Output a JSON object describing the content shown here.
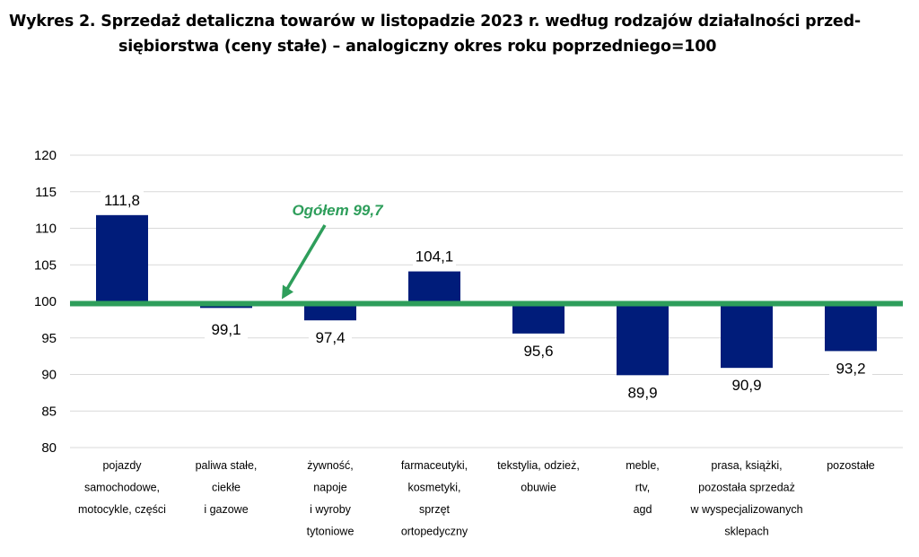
{
  "title_lines": [
    "Wykres 2. Sprzedaż detaliczna towarów w listopadzie 2023 r. według rodzajów działalności przed-",
    "siębiorstwa (ceny stałe) – analogiczny okres roku poprzedniego=100"
  ],
  "chart_data": {
    "type": "bar",
    "title": "Wykres 2. Sprzedaż detaliczna towarów w listopadzie 2023 r. według rodzajów działalności przedsiębiorstwa (ceny stałe) – analogiczny okres roku poprzedniego=100",
    "categories": [
      [
        "pojazdy",
        "samochodowe,",
        "motocykle, części"
      ],
      [
        "paliwa stałe,",
        "ciekłe",
        "i gazowe"
      ],
      [
        "żywność,",
        "napoje",
        "i wyroby",
        "tytoniowe"
      ],
      [
        "farmaceutyki,",
        "kosmetyki,",
        "sprzęt",
        "ortopedyczny"
      ],
      [
        "tekstylia, odzież,",
        "obuwie"
      ],
      [
        "meble,",
        "rtv,",
        "agd"
      ],
      [
        "prasa, książki,",
        "pozostała sprzedaż",
        "w wyspecjalizowanych",
        "sklepach"
      ],
      [
        "pozostałe"
      ]
    ],
    "values": [
      111.8,
      99.1,
      97.4,
      104.1,
      95.6,
      89.9,
      90.9,
      93.2
    ],
    "value_labels": [
      "111,8",
      "99,1",
      "97,4",
      "104,1",
      "95,6",
      "89,9",
      "90,9",
      "93,2"
    ],
    "baseline": 100,
    "ylim": [
      80,
      120
    ],
    "yticks": [
      80,
      85,
      90,
      95,
      100,
      105,
      110,
      115,
      120
    ],
    "grid": true,
    "bar_color": "#001c7a",
    "gridline_color": "#d9d9d9",
    "reference_line": {
      "label": "Ogółem 99,7",
      "value": 99.7,
      "color": "#2e9e5b"
    },
    "xlabel": "",
    "ylabel": ""
  }
}
